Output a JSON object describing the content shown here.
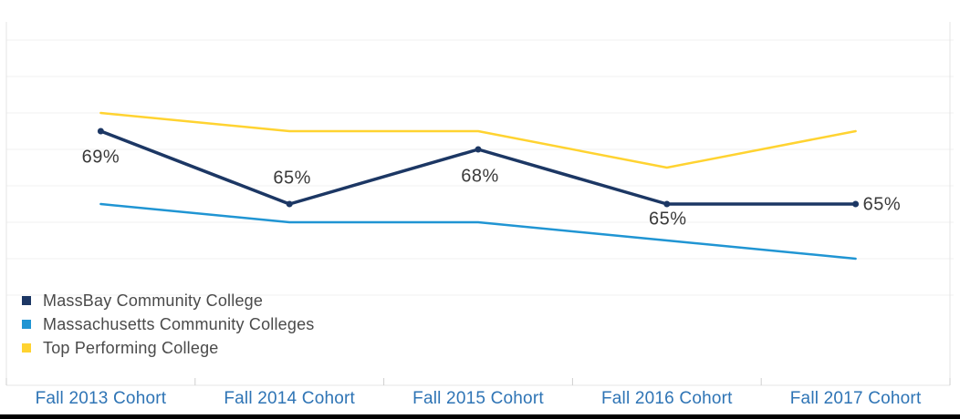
{
  "chart_data": {
    "type": "line",
    "title": "",
    "categories": [
      "Fall 2013 Cohort",
      "Fall 2014 Cohort",
      "Fall 2015 Cohort",
      "Fall 2016 Cohort",
      "Fall 2017 Cohort"
    ],
    "series": [
      {
        "name": "MassBay Community College",
        "color": "#1c3764",
        "values": [
          69,
          65,
          68,
          65,
          65
        ],
        "unit": "%",
        "line_width": 3.5,
        "markers": true,
        "data_labels": [
          {
            "text": "69%",
            "anchor": "center",
            "dx": 0,
            "dy": 29
          },
          {
            "text": "65%",
            "anchor": "center",
            "dx": 3,
            "dy": -28
          },
          {
            "text": "68%",
            "anchor": "center",
            "dx": 2,
            "dy": 30
          },
          {
            "text": "65%",
            "anchor": "center",
            "dx": 1,
            "dy": 17
          },
          {
            "text": "65%",
            "anchor": "start",
            "dx": 8,
            "dy": 1
          }
        ]
      },
      {
        "name": "Massachusetts Community Colleges",
        "color": "#2095d3",
        "values": [
          65,
          64,
          64,
          63,
          62
        ],
        "unit": "%",
        "line_width": 2.5,
        "markers": false,
        "data_labels": []
      },
      {
        "name": "Top Performing College",
        "color": "#ffd331",
        "values": [
          70,
          69,
          69,
          67,
          69
        ],
        "unit": "%",
        "line_width": 2.5,
        "markers": false,
        "data_labels": []
      }
    ],
    "ylim": [
      60,
      74
    ],
    "gridline_step_pct": 2,
    "grid": true,
    "legend_position": "bottom-left",
    "xlabel": "",
    "ylabel": "",
    "colors": {
      "gridline": "#f0f0f0",
      "axis_line": "#e4e4e4",
      "tick": "#cfcfcf",
      "x_axis_label": "#2e74b5",
      "data_label": "#3a3a3a",
      "legend_text": "#4a4a4a",
      "bottom_bar": "#000000"
    }
  }
}
